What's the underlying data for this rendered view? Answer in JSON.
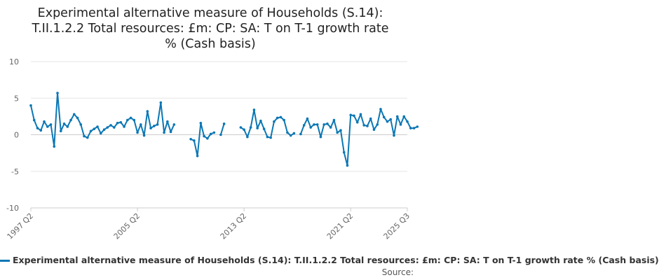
{
  "chart_data": {
    "type": "line",
    "title_lines": [
      "Experimental alternative measure of Households (S.14):",
      "T.II.1.2.2 Total resources: £m: CP: SA: T on T-1 growth rate",
      "% (Cash basis)"
    ],
    "xlabel": "",
    "ylabel": "",
    "ylim": [
      -10,
      10
    ],
    "yticks": [
      "10",
      "5",
      "0",
      "-5",
      "-10"
    ],
    "xticks": [
      "1997 Q2",
      "2005 Q2",
      "2013 Q2",
      "2021 Q2",
      "2025 Q3"
    ],
    "grid": true,
    "legend_label": "Experimental alternative measure of Households (S.14): T.II.1.2.2 Total resources: £m: CP: SA: T on T-1 growth rate % (Cash basis)",
    "source": "Source:",
    "color": "#0b77b4",
    "start_quarter": "1997 Q2",
    "series": [
      {
        "values": [
          4.0,
          2.0,
          0.9,
          0.6,
          1.8,
          1.1,
          1.4,
          -1.6,
          5.7,
          0.5,
          1.5,
          1.1,
          2.0,
          2.8,
          2.3,
          1.4,
          -0.2,
          -0.4,
          0.5,
          0.8,
          1.1,
          0.2,
          0.7,
          1.0,
          1.3,
          1.0,
          1.6,
          1.7,
          1.1,
          2.0,
          2.3,
          2.0,
          0.3,
          1.4,
          -0.1,
          3.2,
          0.9,
          1.2,
          1.4,
          4.4,
          0.3,
          1.8,
          0.4,
          1.4,
          null,
          null,
          null,
          null,
          -0.6,
          -0.8,
          -2.9,
          1.6,
          -0.2,
          -0.5,
          0.1,
          0.3,
          null,
          0.0,
          1.5,
          null,
          null,
          null,
          null,
          1.0,
          0.7,
          -0.3,
          1.0,
          3.4,
          0.9,
          1.9,
          0.8,
          -0.3,
          -0.4,
          1.8,
          2.3,
          2.4,
          2.0,
          0.3,
          -0.1,
          0.2,
          null,
          0.1,
          1.3,
          2.2,
          1.0,
          1.4,
          1.4,
          -0.3,
          1.4,
          1.5,
          1.0,
          2.0,
          0.3,
          0.6,
          -2.4,
          -4.2,
          2.7,
          2.6,
          1.7,
          2.8,
          1.3,
          1.2,
          2.2,
          0.7,
          1.4,
          3.5,
          2.4,
          1.8,
          2.1,
          -0.1,
          2.5,
          1.4,
          2.5,
          1.8,
          0.9,
          0.9,
          1.1
        ]
      }
    ]
  }
}
